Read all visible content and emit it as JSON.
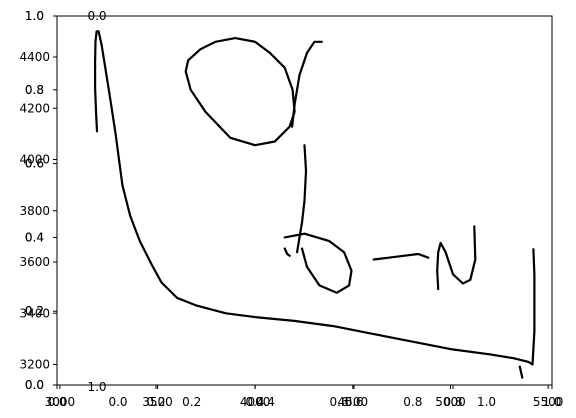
{
  "chart_data": [
    {
      "type": "line",
      "name": "main axes",
      "title": "",
      "xlabel": "",
      "ylabel": "",
      "xlim": [
        2985,
        5520
      ],
      "ylim": [
        3120,
        4560
      ],
      "x_ticks": [
        "3000",
        "3500",
        "4000",
        "4500",
        "5000",
        "5500"
      ],
      "y_ticks": [
        "3200",
        "3400",
        "3600",
        "3800",
        "4000",
        "4200",
        "4400"
      ],
      "grid": false,
      "legend": "none",
      "series": [
        {
          "color": "#000000",
          "x": [
            3190,
            3185,
            3180,
            3180,
            3182,
            3188,
            3198,
            3213,
            3230,
            3255,
            3285,
            3320,
            3360,
            3410,
            3470,
            3520,
            3600,
            3700,
            3850,
            4000,
            4200,
            4400,
            4600,
            4800,
            5000,
            5200,
            5320,
            5400,
            5420,
            5430,
            5430,
            5425
          ],
          "y": [
            4110,
            4180,
            4280,
            4380,
            4460,
            4500,
            4500,
            4450,
            4370,
            4250,
            4100,
            3900,
            3780,
            3680,
            3590,
            3520,
            3460,
            3430,
            3400,
            3385,
            3370,
            3350,
            3320,
            3290,
            3260,
            3240,
            3225,
            3210,
            3200,
            3330,
            3550,
            3650
          ]
        }
      ]
    },
    {
      "type": "line",
      "name": "overlaid unit axes (upper)",
      "xlim": [
        0,
        1
      ],
      "ylim": [
        0,
        1
      ],
      "y_ticks": [
        "0.0",
        "0.2",
        "0.4",
        "0.6",
        "0.8",
        "1.0"
      ],
      "x_ticks": [
        "0.0",
        "0.2",
        "0.4",
        "0.6",
        "0.8",
        "1.0"
      ],
      "top_label": "0.0",
      "series": [
        {
          "color": "#000000",
          "x": [
            0.265,
            0.26,
            0.27,
            0.3,
            0.35,
            0.4,
            0.44,
            0.47,
            0.48,
            0.476,
            0.46,
            0.43,
            0.4,
            0.36,
            0.32,
            0.29,
            0.265
          ],
          "y": [
            0.88,
            0.85,
            0.8,
            0.74,
            0.67,
            0.65,
            0.66,
            0.7,
            0.74,
            0.8,
            0.86,
            0.9,
            0.93,
            0.94,
            0.93,
            0.91,
            0.88
          ]
        },
        {
          "color": "#000000",
          "x": [
            0.475,
            0.48,
            0.49,
            0.505,
            0.52,
            0.535
          ],
          "y": [
            0.7,
            0.76,
            0.84,
            0.9,
            0.93,
            0.93
          ]
        }
      ]
    },
    {
      "type": "line",
      "name": "overlaid unit axes (lower)",
      "xlim": [
        0,
        1
      ],
      "ylim": [
        0,
        1
      ],
      "x_ticks": [
        "0.0",
        "0.2",
        "0.4",
        "0.6",
        "0.8",
        "1.0"
      ],
      "y_ticks": [
        "0.0",
        "0.2",
        "0.4",
        "0.6",
        "0.8",
        "1.0"
      ],
      "bottom_label": "1.0",
      "series": [
        {
          "color": "#000000",
          "x": [
            0.5,
            0.503,
            0.5,
            0.495,
            0.49,
            0.485
          ],
          "y": [
            0.65,
            0.58,
            0.5,
            0.44,
            0.4,
            0.36
          ]
        },
        {
          "color": "#000000",
          "x": [
            0.46,
            0.5,
            0.55,
            0.58,
            0.595,
            0.59,
            0.565,
            0.53,
            0.505,
            0.495
          ],
          "y": [
            0.4,
            0.41,
            0.39,
            0.36,
            0.31,
            0.27,
            0.25,
            0.27,
            0.32,
            0.37
          ]
        },
        {
          "color": "#000000",
          "x": [
            0.46,
            0.465,
            0.47
          ],
          "y": [
            0.37,
            0.355,
            0.35
          ]
        },
        {
          "color": "#000000",
          "x": [
            0.64,
            0.67,
            0.7,
            0.73,
            0.75
          ],
          "y": [
            0.34,
            0.345,
            0.35,
            0.355,
            0.345
          ]
        },
        {
          "color": "#000000",
          "x": [
            0.77,
            0.768,
            0.77,
            0.775,
            0.785,
            0.8,
            0.82,
            0.835,
            0.845,
            0.843
          ],
          "y": [
            0.26,
            0.31,
            0.36,
            0.385,
            0.36,
            0.3,
            0.275,
            0.285,
            0.34,
            0.43
          ]
        },
        {
          "color": "#000000",
          "x": [
            0.94,
            0.935
          ],
          "y": [
            0.02,
            0.05
          ]
        }
      ]
    }
  ]
}
